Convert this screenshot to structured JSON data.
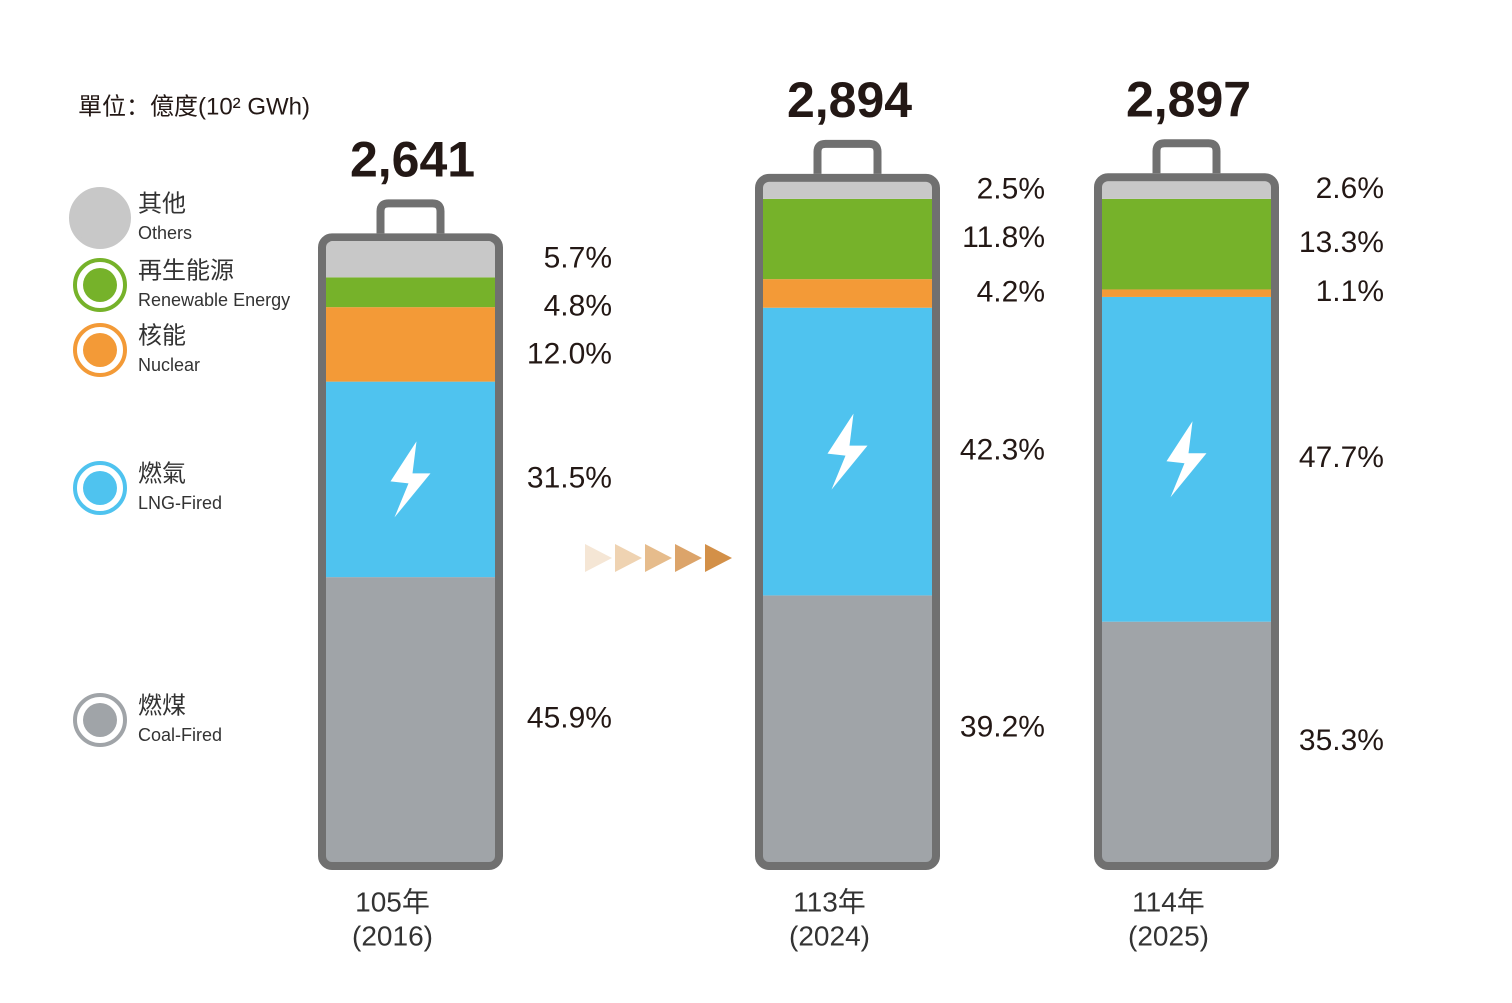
{
  "chart_data": {
    "type": "stacked-battery",
    "unit": "單位：億度(10² GWh)",
    "categories": [
      [
        "105年",
        "(2016)"
      ],
      [
        "113年",
        "(2024)"
      ],
      [
        "114年",
        "(2025)"
      ]
    ],
    "totals": [
      {
        "value": 2641,
        "label": "2,641"
      },
      {
        "value": 2894,
        "label": "2,894"
      },
      {
        "value": 2897,
        "label": "2,897"
      }
    ],
    "series": [
      {
        "name": "燃煤",
        "name_en": "Coal-Fired",
        "color": "#a0a4a8",
        "values": [
          45.9,
          39.2,
          35.3
        ],
        "value_labels": [
          "45.9%",
          "39.2%",
          "35.3%"
        ]
      },
      {
        "name": "燃氣",
        "name_en": "LNG-Fired",
        "color": "#4fc3ef",
        "values": [
          31.5,
          42.3,
          47.7
        ],
        "value_labels": [
          "31.5%",
          "42.3%",
          "47.7%"
        ]
      },
      {
        "name": "核能",
        "name_en": "Nuclear",
        "color": "#f39a37",
        "values": [
          12.0,
          4.2,
          1.1
        ],
        "value_labels": [
          "12.0%",
          "4.2%",
          "1.1%"
        ]
      },
      {
        "name": "再生能源",
        "name_en": "Renewable Energy",
        "color": "#76b22a",
        "values": [
          4.8,
          11.8,
          13.3
        ],
        "value_labels": [
          "4.8%",
          "11.8%",
          "13.3%"
        ]
      },
      {
        "name": "其他",
        "name_en": "Others",
        "color": "#c8c8c8",
        "values": [
          5.7,
          2.5,
          2.6
        ],
        "value_labels": [
          "5.7%",
          "2.5%",
          "2.6%"
        ]
      }
    ]
  }
}
